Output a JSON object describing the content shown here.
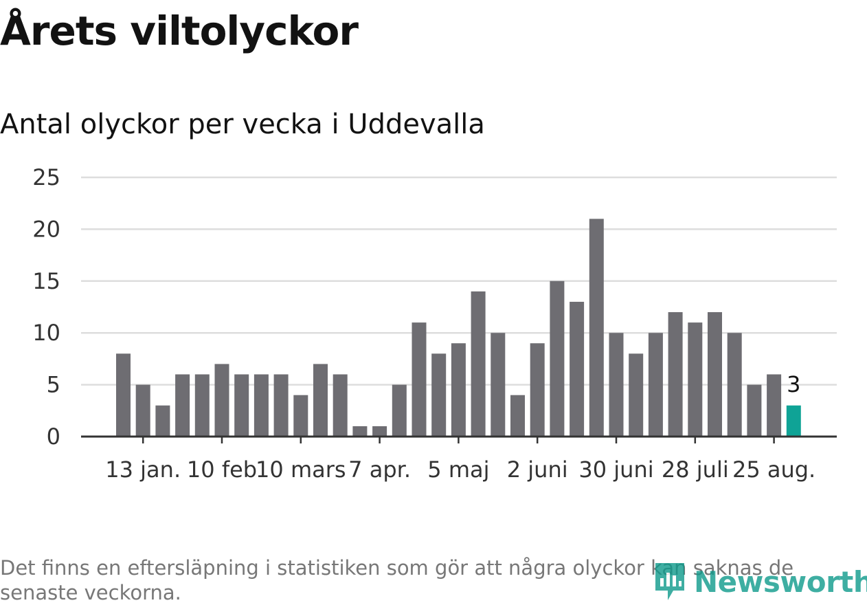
{
  "chart_data": {
    "type": "bar",
    "title": "Årets viltolyckor",
    "subtitle": "Antal olyckor per vecka i Uddevalla",
    "values": [
      8,
      5,
      3,
      6,
      6,
      7,
      6,
      6,
      6,
      4,
      7,
      6,
      1,
      1,
      5,
      11,
      8,
      9,
      14,
      10,
      4,
      9,
      15,
      13,
      21,
      10,
      8,
      10,
      12,
      11,
      12,
      10,
      5,
      6,
      3
    ],
    "highlight_index": 34,
    "highlight_label": "3",
    "x_tick_labels": [
      "13 jan.",
      "10 feb",
      "10 mars",
      "7 apr.",
      "5 maj",
      "2 juni",
      "30 juni",
      "28 juli",
      "25 aug."
    ],
    "x_tick_bar_index": [
      1,
      5,
      9,
      13,
      17,
      21,
      25,
      29,
      33
    ],
    "y_ticks": [
      "0",
      "5",
      "10",
      "15",
      "20",
      "25"
    ],
    "ylim": [
      0,
      25
    ],
    "grid": true,
    "colors": {
      "bar": "#6e6d72",
      "highlight": "#0fa396",
      "grid": "#dddddd",
      "axis": "#333333"
    }
  },
  "footer": {
    "note": "Det finns en eftersläpning i statistiken som gör att några olyckor kan saknas de senaste veckorna.",
    "logo_text": "Newsworthy"
  }
}
